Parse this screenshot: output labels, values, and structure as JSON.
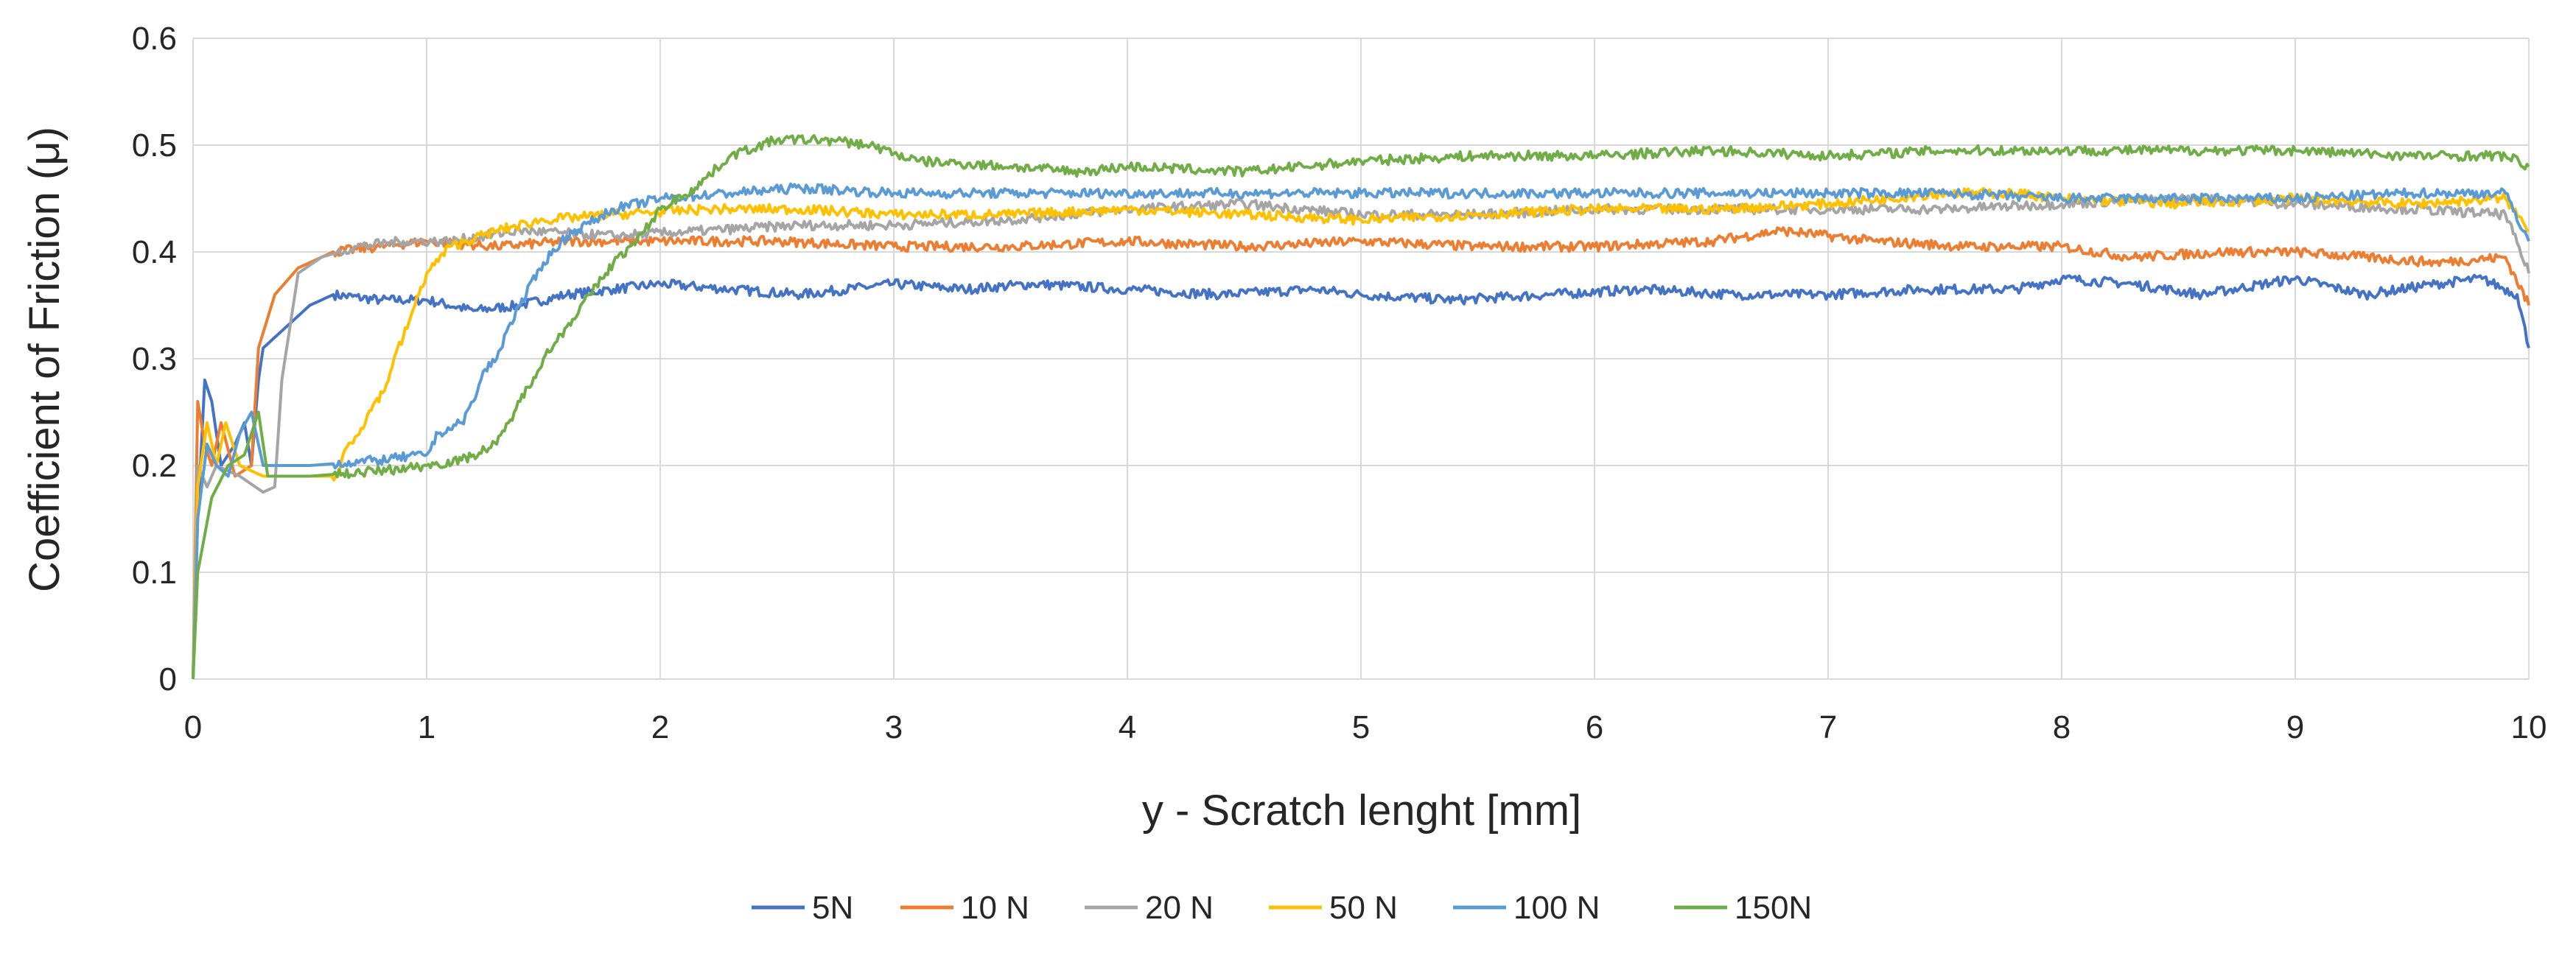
{
  "chart_data": {
    "type": "line",
    "title": "",
    "xlabel": "y - Scratch lenght [mm]",
    "ylabel": "Coefficient of Friction (μ)",
    "xlim": [
      0,
      10
    ],
    "ylim": [
      0,
      0.6
    ],
    "xticks": [
      "0",
      "1",
      "2",
      "3",
      "4",
      "5",
      "6",
      "7",
      "8",
      "9",
      "10"
    ],
    "yticks": [
      "0",
      "0.1",
      "0.2",
      "0.3",
      "0.4",
      "0.5",
      "0.6"
    ],
    "grid": true,
    "legend_position": "bottom",
    "series": [
      {
        "name": "5N",
        "color": "#4472C4",
        "points": [
          [
            0,
            0
          ],
          [
            0.02,
            0.15
          ],
          [
            0.05,
            0.28
          ],
          [
            0.08,
            0.26
          ],
          [
            0.12,
            0.2
          ],
          [
            0.18,
            0.22
          ],
          [
            0.22,
            0.24
          ],
          [
            0.25,
            0.2
          ],
          [
            0.28,
            0.28
          ],
          [
            0.3,
            0.31
          ],
          [
            0.4,
            0.33
          ],
          [
            0.5,
            0.35
          ],
          [
            0.6,
            0.36
          ],
          [
            0.8,
            0.355
          ],
          [
            1.0,
            0.355
          ],
          [
            1.2,
            0.345
          ],
          [
            1.4,
            0.35
          ],
          [
            1.6,
            0.36
          ],
          [
            1.8,
            0.365
          ],
          [
            2.0,
            0.37
          ],
          [
            2.3,
            0.365
          ],
          [
            2.6,
            0.36
          ],
          [
            3.0,
            0.37
          ],
          [
            3.3,
            0.365
          ],
          [
            3.6,
            0.37
          ],
          [
            4.0,
            0.365
          ],
          [
            4.4,
            0.36
          ],
          [
            4.8,
            0.365
          ],
          [
            5.0,
            0.36
          ],
          [
            5.4,
            0.355
          ],
          [
            5.8,
            0.36
          ],
          [
            6.2,
            0.365
          ],
          [
            6.6,
            0.36
          ],
          [
            7.0,
            0.36
          ],
          [
            7.4,
            0.365
          ],
          [
            7.8,
            0.365
          ],
          [
            8.0,
            0.375
          ],
          [
            8.3,
            0.37
          ],
          [
            8.6,
            0.36
          ],
          [
            9.0,
            0.375
          ],
          [
            9.3,
            0.36
          ],
          [
            9.6,
            0.37
          ],
          [
            9.8,
            0.375
          ],
          [
            9.95,
            0.36
          ],
          [
            10,
            0.31
          ]
        ]
      },
      {
        "name": "10 N",
        "color": "#ED7D31",
        "points": [
          [
            0,
            0
          ],
          [
            0.02,
            0.26
          ],
          [
            0.05,
            0.22
          ],
          [
            0.08,
            0.2
          ],
          [
            0.12,
            0.24
          ],
          [
            0.18,
            0.19
          ],
          [
            0.25,
            0.2
          ],
          [
            0.28,
            0.31
          ],
          [
            0.35,
            0.36
          ],
          [
            0.45,
            0.385
          ],
          [
            0.6,
            0.4
          ],
          [
            0.8,
            0.405
          ],
          [
            1.0,
            0.41
          ],
          [
            1.3,
            0.405
          ],
          [
            1.6,
            0.41
          ],
          [
            2.0,
            0.41
          ],
          [
            2.5,
            0.41
          ],
          [
            3.0,
            0.405
          ],
          [
            3.5,
            0.405
          ],
          [
            4.0,
            0.41
          ],
          [
            4.5,
            0.405
          ],
          [
            5.0,
            0.41
          ],
          [
            5.5,
            0.405
          ],
          [
            6.0,
            0.405
          ],
          [
            6.5,
            0.41
          ],
          [
            6.8,
            0.42
          ],
          [
            7.2,
            0.41
          ],
          [
            7.6,
            0.405
          ],
          [
            8.0,
            0.405
          ],
          [
            8.3,
            0.395
          ],
          [
            8.7,
            0.4
          ],
          [
            9.0,
            0.4
          ],
          [
            9.3,
            0.395
          ],
          [
            9.6,
            0.39
          ],
          [
            9.9,
            0.395
          ],
          [
            10,
            0.35
          ]
        ]
      },
      {
        "name": "20 N",
        "color": "#A5A5A5",
        "points": [
          [
            0,
            0
          ],
          [
            0.02,
            0.2
          ],
          [
            0.06,
            0.18
          ],
          [
            0.1,
            0.2
          ],
          [
            0.2,
            0.19
          ],
          [
            0.3,
            0.175
          ],
          [
            0.35,
            0.18
          ],
          [
            0.38,
            0.28
          ],
          [
            0.45,
            0.38
          ],
          [
            0.55,
            0.395
          ],
          [
            0.7,
            0.405
          ],
          [
            0.9,
            0.41
          ],
          [
            1.1,
            0.41
          ],
          [
            1.4,
            0.42
          ],
          [
            1.8,
            0.415
          ],
          [
            2.2,
            0.42
          ],
          [
            2.6,
            0.425
          ],
          [
            3.0,
            0.425
          ],
          [
            3.5,
            0.43
          ],
          [
            4.0,
            0.44
          ],
          [
            4.5,
            0.445
          ],
          [
            5.0,
            0.435
          ],
          [
            5.5,
            0.435
          ],
          [
            6.0,
            0.44
          ],
          [
            6.5,
            0.44
          ],
          [
            7.0,
            0.44
          ],
          [
            7.5,
            0.44
          ],
          [
            8.0,
            0.445
          ],
          [
            8.5,
            0.45
          ],
          [
            9.0,
            0.445
          ],
          [
            9.5,
            0.44
          ],
          [
            9.9,
            0.435
          ],
          [
            10,
            0.38
          ]
        ]
      },
      {
        "name": "50 N",
        "color": "#FFC000",
        "points": [
          [
            0,
            0
          ],
          [
            0.02,
            0.18
          ],
          [
            0.06,
            0.24
          ],
          [
            0.1,
            0.2
          ],
          [
            0.14,
            0.24
          ],
          [
            0.2,
            0.2
          ],
          [
            0.3,
            0.19
          ],
          [
            0.5,
            0.19
          ],
          [
            0.62,
            0.19
          ],
          [
            0.65,
            0.215
          ],
          [
            0.72,
            0.235
          ],
          [
            0.78,
            0.26
          ],
          [
            0.82,
            0.27
          ],
          [
            0.86,
            0.3
          ],
          [
            0.9,
            0.32
          ],
          [
            0.95,
            0.35
          ],
          [
            1.0,
            0.38
          ],
          [
            1.1,
            0.405
          ],
          [
            1.3,
            0.42
          ],
          [
            1.5,
            0.43
          ],
          [
            1.8,
            0.435
          ],
          [
            2.2,
            0.44
          ],
          [
            2.6,
            0.44
          ],
          [
            3.0,
            0.435
          ],
          [
            3.5,
            0.435
          ],
          [
            4.0,
            0.44
          ],
          [
            4.5,
            0.435
          ],
          [
            5.0,
            0.43
          ],
          [
            5.5,
            0.435
          ],
          [
            6.0,
            0.44
          ],
          [
            6.5,
            0.44
          ],
          [
            7.0,
            0.445
          ],
          [
            7.5,
            0.455
          ],
          [
            7.8,
            0.455
          ],
          [
            8.0,
            0.45
          ],
          [
            8.5,
            0.445
          ],
          [
            9.0,
            0.45
          ],
          [
            9.5,
            0.445
          ],
          [
            9.9,
            0.45
          ],
          [
            10,
            0.42
          ]
        ]
      },
      {
        "name": "100 N",
        "color": "#5B9BD5",
        "points": [
          [
            0,
            0
          ],
          [
            0.02,
            0.15
          ],
          [
            0.06,
            0.22
          ],
          [
            0.1,
            0.2
          ],
          [
            0.15,
            0.19
          ],
          [
            0.2,
            0.23
          ],
          [
            0.25,
            0.25
          ],
          [
            0.3,
            0.2
          ],
          [
            0.5,
            0.2
          ],
          [
            0.8,
            0.205
          ],
          [
            1.0,
            0.21
          ],
          [
            1.05,
            0.23
          ],
          [
            1.15,
            0.24
          ],
          [
            1.2,
            0.26
          ],
          [
            1.25,
            0.29
          ],
          [
            1.3,
            0.3
          ],
          [
            1.35,
            0.33
          ],
          [
            1.4,
            0.35
          ],
          [
            1.5,
            0.39
          ],
          [
            1.6,
            0.415
          ],
          [
            1.8,
            0.44
          ],
          [
            2.0,
            0.45
          ],
          [
            2.3,
            0.455
          ],
          [
            2.6,
            0.46
          ],
          [
            3.0,
            0.455
          ],
          [
            3.5,
            0.455
          ],
          [
            4.0,
            0.455
          ],
          [
            4.5,
            0.455
          ],
          [
            5.0,
            0.455
          ],
          [
            5.5,
            0.455
          ],
          [
            6.0,
            0.455
          ],
          [
            6.5,
            0.455
          ],
          [
            7.0,
            0.455
          ],
          [
            7.5,
            0.455
          ],
          [
            8.0,
            0.45
          ],
          [
            8.5,
            0.45
          ],
          [
            9.0,
            0.45
          ],
          [
            9.5,
            0.455
          ],
          [
            9.9,
            0.455
          ],
          [
            10,
            0.41
          ]
        ]
      },
      {
        "name": "150N",
        "color": "#70AD47",
        "points": [
          [
            0,
            0
          ],
          [
            0.02,
            0.1
          ],
          [
            0.08,
            0.17
          ],
          [
            0.15,
            0.2
          ],
          [
            0.22,
            0.21
          ],
          [
            0.28,
            0.25
          ],
          [
            0.32,
            0.19
          ],
          [
            0.5,
            0.19
          ],
          [
            0.8,
            0.195
          ],
          [
            1.0,
            0.2
          ],
          [
            1.15,
            0.205
          ],
          [
            1.2,
            0.21
          ],
          [
            1.3,
            0.22
          ],
          [
            1.35,
            0.24
          ],
          [
            1.4,
            0.26
          ],
          [
            1.5,
            0.3
          ],
          [
            1.6,
            0.33
          ],
          [
            1.7,
            0.36
          ],
          [
            1.8,
            0.39
          ],
          [
            1.9,
            0.41
          ],
          [
            2.0,
            0.44
          ],
          [
            2.15,
            0.46
          ],
          [
            2.3,
            0.49
          ],
          [
            2.5,
            0.505
          ],
          [
            2.7,
            0.505
          ],
          [
            2.9,
            0.5
          ],
          [
            3.1,
            0.485
          ],
          [
            3.5,
            0.48
          ],
          [
            3.8,
            0.475
          ],
          [
            4.0,
            0.48
          ],
          [
            4.5,
            0.475
          ],
          [
            5.0,
            0.485
          ],
          [
            5.5,
            0.49
          ],
          [
            6.0,
            0.49
          ],
          [
            6.5,
            0.495
          ],
          [
            7.0,
            0.49
          ],
          [
            7.5,
            0.495
          ],
          [
            8.0,
            0.495
          ],
          [
            8.5,
            0.495
          ],
          [
            9.0,
            0.495
          ],
          [
            9.5,
            0.49
          ],
          [
            9.9,
            0.49
          ],
          [
            10,
            0.48
          ]
        ]
      }
    ]
  }
}
